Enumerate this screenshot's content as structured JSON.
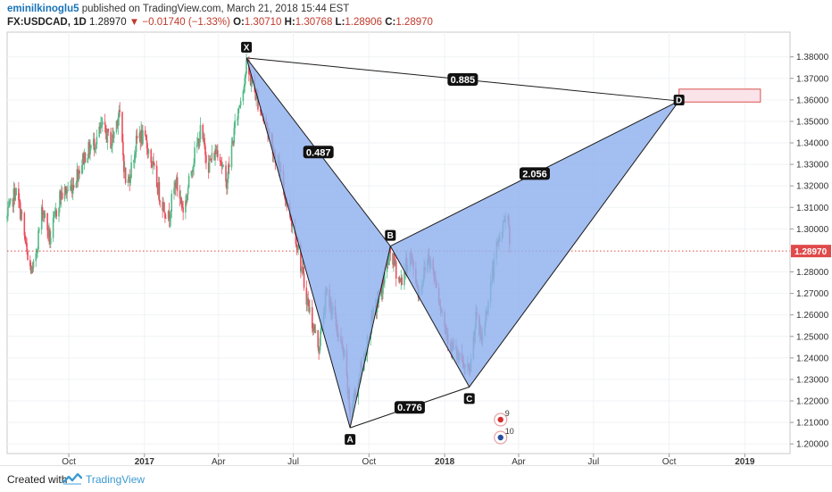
{
  "header": {
    "author": "eminilkinoglu5",
    "published": " published on TradingView.com, March 21, 2018 15:44 EST",
    "symbol": "FX:USDCAD, 1D",
    "last": "1.28970",
    "change": "−0.01740 (−1.33%)",
    "open_label": "O:",
    "open": "1.30710",
    "high_label": "H:",
    "high": "1.30768",
    "low_label": "L:",
    "low": "1.28906",
    "close_label": "C:",
    "close": "1.28970"
  },
  "footer": {
    "created_with": "Created with",
    "brand": "TradingView"
  },
  "colors": {
    "up": "#53b987",
    "down": "#eb4d5c",
    "pattern_fill": "#8fb0ee",
    "price_line": "#e04a4a",
    "last_price_bg": "#e04a4a",
    "zone_fill": "#fbe3ea",
    "zone_border": "#d9534f"
  },
  "chart_data": {
    "type": "candlestick",
    "instrument": "USDCAD",
    "timeframe": "1D",
    "x_labels": [
      "Oct",
      "2017",
      "Apr",
      "Jul",
      "Oct",
      "2018",
      "Apr",
      "Jul",
      "Oct",
      "2019"
    ],
    "x_label_dates": [
      "2016-10-01",
      "2017-01-01",
      "2017-04-01",
      "2017-07-01",
      "2017-10-01",
      "2018-01-01",
      "2018-04-01",
      "2018-07-01",
      "2018-10-01",
      "2019-01-01"
    ],
    "x_range": [
      "2016-07-18",
      "2019-02-25"
    ],
    "y_ticks": [
      "1.38000",
      "1.37000",
      "1.36000",
      "1.35000",
      "1.34000",
      "1.33000",
      "1.32000",
      "1.31000",
      "1.30000",
      "1.28000",
      "1.27000",
      "1.26000",
      "1.25000",
      "1.24000",
      "1.23000",
      "1.22000",
      "1.21000",
      "1.20000"
    ],
    "ylim": [
      1.1955,
      1.3915
    ],
    "last_price": 1.2897,
    "last_price_label": "1.28970",
    "price_path": [
      [
        "2016-07-18",
        1.305
      ],
      [
        "2016-07-28",
        1.318
      ],
      [
        "2016-08-05",
        1.305
      ],
      [
        "2016-08-12",
        1.285
      ],
      [
        "2016-08-18",
        1.279
      ],
      [
        "2016-08-30",
        1.31
      ],
      [
        "2016-09-08",
        1.295
      ],
      [
        "2016-09-20",
        1.315
      ],
      [
        "2016-10-05",
        1.32
      ],
      [
        "2016-10-20",
        1.334
      ],
      [
        "2016-11-01",
        1.34
      ],
      [
        "2016-11-10",
        1.347
      ],
      [
        "2016-11-22",
        1.34
      ],
      [
        "2016-12-01",
        1.355
      ],
      [
        "2016-12-10",
        1.318
      ],
      [
        "2016-12-25",
        1.345
      ],
      [
        "2017-01-05",
        1.338
      ],
      [
        "2017-01-20",
        1.315
      ],
      [
        "2017-01-30",
        1.305
      ],
      [
        "2017-02-08",
        1.322
      ],
      [
        "2017-02-18",
        1.308
      ],
      [
        "2017-02-28",
        1.33
      ],
      [
        "2017-03-10",
        1.345
      ],
      [
        "2017-03-20",
        1.33
      ],
      [
        "2017-04-01",
        1.338
      ],
      [
        "2017-04-10",
        1.32
      ],
      [
        "2017-04-20",
        1.345
      ],
      [
        "2017-05-05",
        1.375
      ],
      [
        "2017-05-20",
        1.358
      ],
      [
        "2017-06-01",
        1.345
      ],
      [
        "2017-06-12",
        1.33
      ],
      [
        "2017-06-25",
        1.31
      ],
      [
        "2017-07-05",
        1.295
      ],
      [
        "2017-07-15",
        1.272
      ],
      [
        "2017-07-25",
        1.255
      ],
      [
        "2017-08-01",
        1.245
      ],
      [
        "2017-08-10",
        1.27
      ],
      [
        "2017-08-18",
        1.262
      ],
      [
        "2017-08-25",
        1.25
      ],
      [
        "2017-09-01",
        1.24
      ],
      [
        "2017-09-08",
        1.214
      ],
      [
        "2017-09-15",
        1.225
      ],
      [
        "2017-09-25",
        1.24
      ],
      [
        "2017-10-05",
        1.258
      ],
      [
        "2017-10-15",
        1.27
      ],
      [
        "2017-10-27",
        1.289
      ],
      [
        "2017-11-08",
        1.275
      ],
      [
        "2017-11-20",
        1.288
      ],
      [
        "2017-12-01",
        1.27
      ],
      [
        "2017-12-12",
        1.288
      ],
      [
        "2017-12-22",
        1.275
      ],
      [
        "2018-01-01",
        1.255
      ],
      [
        "2018-01-10",
        1.245
      ],
      [
        "2018-01-20",
        1.238
      ],
      [
        "2018-01-31",
        1.232
      ],
      [
        "2018-02-08",
        1.258
      ],
      [
        "2018-02-15",
        1.248
      ],
      [
        "2018-02-25",
        1.272
      ],
      [
        "2018-03-05",
        1.29
      ],
      [
        "2018-03-12",
        1.3
      ],
      [
        "2018-03-19",
        1.31
      ],
      [
        "2018-03-21",
        1.29
      ]
    ],
    "harmonic_pattern": {
      "points": [
        {
          "label": "X",
          "date": "2017-05-05",
          "price": 1.3795
        },
        {
          "label": "A",
          "date": "2017-09-08",
          "price": 1.2075
        },
        {
          "label": "B",
          "date": "2017-10-27",
          "price": 1.292
        },
        {
          "label": "C",
          "date": "2018-01-31",
          "price": 1.2265
        },
        {
          "label": "D",
          "date": "2018-10-13",
          "price": 1.3595
        }
      ],
      "ratios": [
        {
          "text": "0.487",
          "between": [
            "X",
            "B"
          ]
        },
        {
          "text": "0.776",
          "between": [
            "A",
            "C"
          ]
        },
        {
          "text": "2.056",
          "between": [
            "B",
            "D"
          ]
        },
        {
          "text": "0.885",
          "between": [
            "X",
            "D"
          ]
        }
      ],
      "target_zone": {
        "from": "2018-10-13",
        "to": "2019-01-20",
        "low": 1.359,
        "high": 1.365
      }
    },
    "event_markers": [
      {
        "label": "9",
        "date": "2018-03-10"
      },
      {
        "label": "10",
        "date": "2018-03-10"
      }
    ]
  }
}
